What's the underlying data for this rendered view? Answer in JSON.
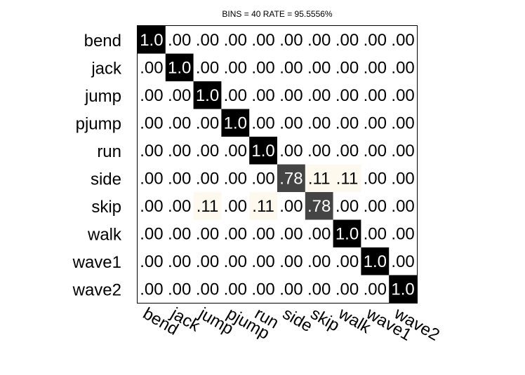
{
  "chart_data": {
    "type": "heatmap",
    "title": "BINS = 40  RATE = 95.5556%",
    "rows": [
      "bend",
      "jack",
      "jump",
      "pjump",
      "run",
      "side",
      "skip",
      "walk",
      "wave1",
      "wave2"
    ],
    "columns": [
      "bend",
      "jack",
      "jump",
      "pjump",
      "run",
      "side",
      "skip",
      "walk",
      "wave1",
      "wave2"
    ],
    "values": [
      [
        1.0,
        0,
        0,
        0,
        0,
        0,
        0,
        0,
        0,
        0
      ],
      [
        0,
        1.0,
        0,
        0,
        0,
        0,
        0,
        0,
        0,
        0
      ],
      [
        0,
        0,
        1.0,
        0,
        0,
        0,
        0,
        0,
        0,
        0
      ],
      [
        0,
        0,
        0,
        1.0,
        0,
        0,
        0,
        0,
        0,
        0
      ],
      [
        0,
        0,
        0,
        0,
        1.0,
        0,
        0,
        0,
        0,
        0
      ],
      [
        0,
        0,
        0,
        0,
        0,
        0.78,
        0.11,
        0.11,
        0,
        0
      ],
      [
        0,
        0,
        0.11,
        0,
        0.11,
        0,
        0.78,
        0,
        0,
        0
      ],
      [
        0,
        0,
        0,
        0,
        0,
        0,
        0,
        1.0,
        0,
        0
      ],
      [
        0,
        0,
        0,
        0,
        0,
        0,
        0,
        0,
        1.0,
        0
      ],
      [
        0,
        0,
        0,
        0,
        0,
        0,
        0,
        0,
        0,
        1.0
      ]
    ],
    "labels": [
      [
        "1.0",
        ".00",
        ".00",
        ".00",
        ".00",
        ".00",
        ".00",
        ".00",
        ".00",
        ".00"
      ],
      [
        ".00",
        "1.0",
        ".00",
        ".00",
        ".00",
        ".00",
        ".00",
        ".00",
        ".00",
        ".00"
      ],
      [
        ".00",
        ".00",
        "1.0",
        ".00",
        ".00",
        ".00",
        ".00",
        ".00",
        ".00",
        ".00"
      ],
      [
        ".00",
        ".00",
        ".00",
        "1.0",
        ".00",
        ".00",
        ".00",
        ".00",
        ".00",
        ".00"
      ],
      [
        ".00",
        ".00",
        ".00",
        ".00",
        "1.0",
        ".00",
        ".00",
        ".00",
        ".00",
        ".00"
      ],
      [
        ".00",
        ".00",
        ".00",
        ".00",
        ".00",
        ".78",
        ".11",
        ".11",
        ".00",
        ".00"
      ],
      [
        ".00",
        ".00",
        ".11",
        ".00",
        ".11",
        ".00",
        ".78",
        ".00",
        ".00",
        ".00"
      ],
      [
        ".00",
        ".00",
        ".00",
        ".00",
        ".00",
        ".00",
        ".00",
        "1.0",
        ".00",
        ".00"
      ],
      [
        ".00",
        ".00",
        ".00",
        ".00",
        ".00",
        ".00",
        ".00",
        ".00",
        "1.0",
        ".00"
      ],
      [
        ".00",
        ".00",
        ".00",
        ".00",
        ".00",
        ".00",
        ".00",
        ".00",
        ".00",
        "1.0"
      ]
    ],
    "grid": false,
    "colors": {
      "high": "#000000",
      "mid": "#444444",
      "low": "#fdf9ee",
      "zero": "#ffffff",
      "text_dark_bg": "#ffffff",
      "text_light_bg": "#000000",
      "frame": "#000000"
    }
  }
}
